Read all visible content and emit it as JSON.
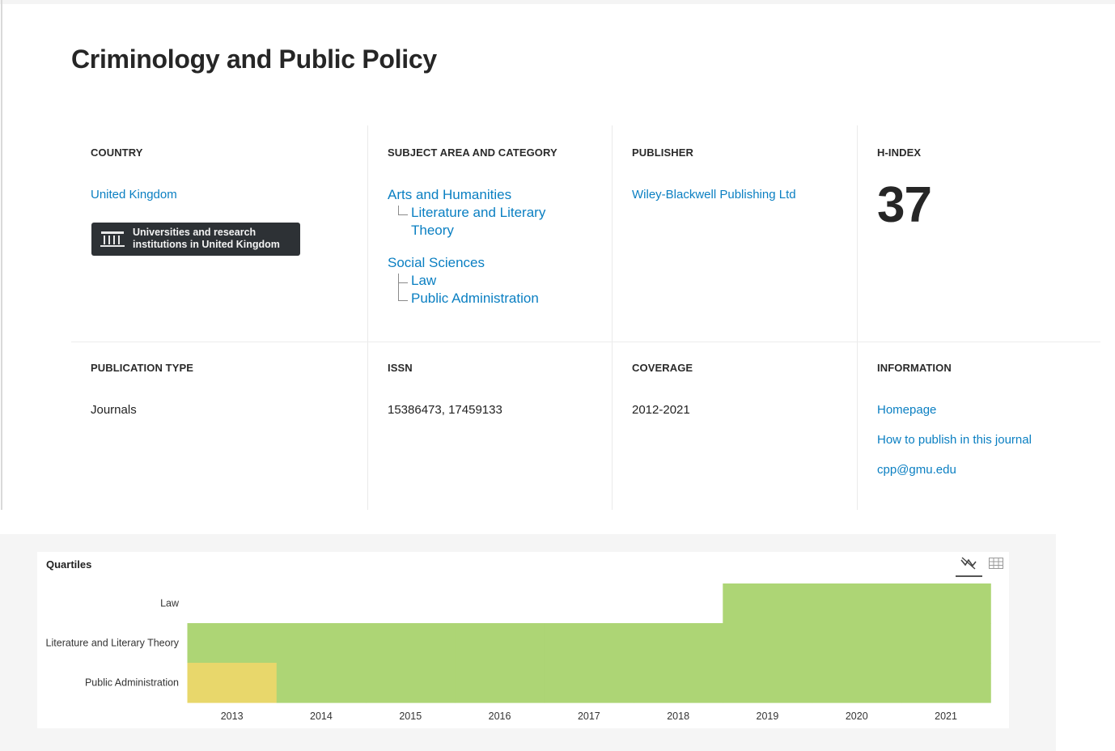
{
  "journal": {
    "title": "Criminology and Public Policy"
  },
  "country": {
    "label": "COUNTRY",
    "value": "United Kingdom",
    "badge_line1": "Universities and research",
    "badge_line2": "institutions in United Kingdom",
    "badge_icon": "institution-icon"
  },
  "subject": {
    "label": "SUBJECT AREA AND CATEGORY",
    "areas": [
      {
        "name": "Arts and Humanities",
        "categories": [
          "Literature and Literary",
          "Theory"
        ]
      },
      {
        "name": "Social Sciences",
        "categories": [
          "Law",
          "Public Administration"
        ]
      }
    ]
  },
  "publisher": {
    "label": "PUBLISHER",
    "value": "Wiley-Blackwell Publishing Ltd"
  },
  "hindex": {
    "label": "H-INDEX",
    "value": "37"
  },
  "pubtype": {
    "label": "PUBLICATION TYPE",
    "value": "Journals"
  },
  "issn": {
    "label": "ISSN",
    "value": "15386473, 17459133"
  },
  "coverage": {
    "label": "COVERAGE",
    "value": "2012-2021"
  },
  "information": {
    "label": "INFORMATION",
    "links": [
      "Homepage",
      "How to publish in this journal",
      "cpp@gmu.edu"
    ]
  },
  "chart_toolbar": {
    "chart_icon": "line-chart-icon",
    "table_icon": "table-icon"
  },
  "chart_data": {
    "type": "heatmap",
    "title": "Quartiles",
    "x": [
      "2013",
      "2014",
      "2015",
      "2016",
      "2017",
      "2018",
      "2019",
      "2020",
      "2021"
    ],
    "rows": [
      "Law",
      "Literature and Literary Theory",
      "Public Administration"
    ],
    "quartiles": [
      [
        null,
        null,
        null,
        null,
        null,
        null,
        "Q1",
        "Q1",
        "Q1"
      ],
      [
        "Q1",
        "Q1",
        "Q1",
        "Q1",
        "Q1",
        "Q1",
        "Q1",
        "Q1",
        "Q1"
      ],
      [
        "Q2",
        "Q1",
        "Q1",
        "Q1",
        "Q1",
        "Q1",
        "Q1",
        "Q1",
        "Q1"
      ]
    ],
    "colors": {
      "Q1": "#add575",
      "Q2": "#e8d76b"
    }
  }
}
